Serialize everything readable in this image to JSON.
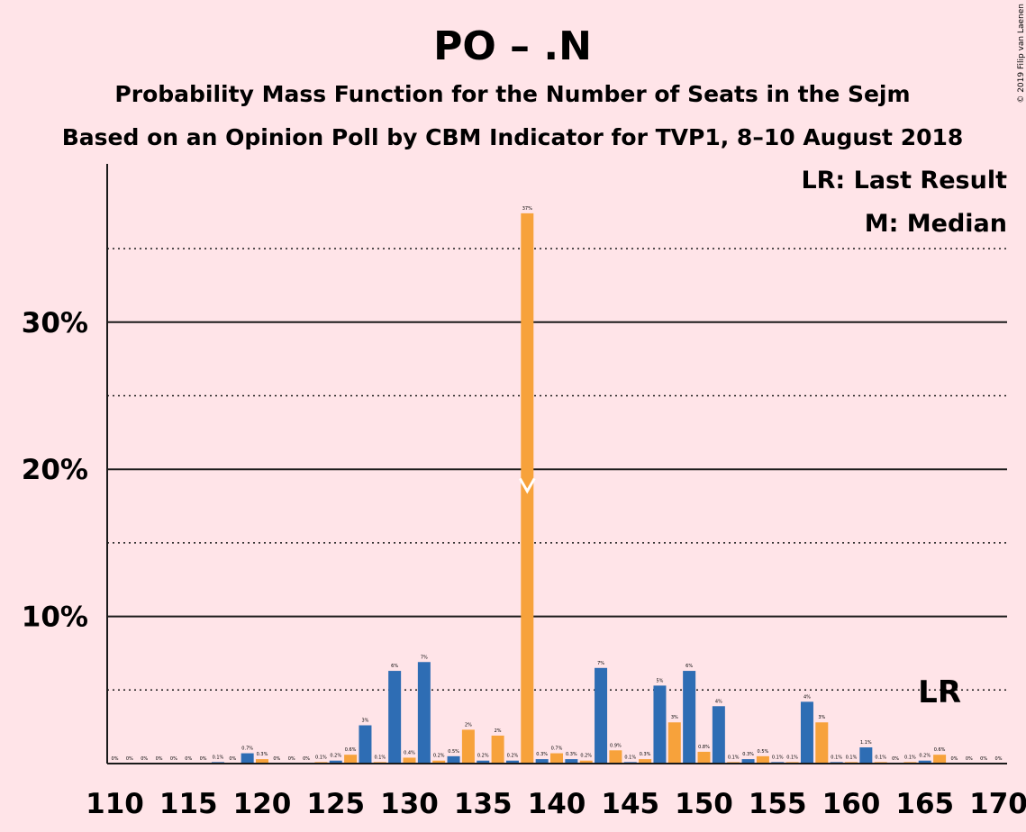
{
  "chart_data": {
    "type": "bar",
    "title": "PO – .N",
    "subtitle": "Probability Mass Function for the Number of Seats in the Sejm",
    "subtitle2": "Based on an Opinion Poll by CBM Indicator for TVP1, 8–10 August 2018",
    "copyright": "© 2019 Filip van Laenen",
    "legend": {
      "lr": "LR: Last Result",
      "median": "M: Median",
      "placement": "top-right"
    },
    "lr_marker": {
      "label": "LR",
      "seat": 166
    },
    "median_seat": 138,
    "xlim": [
      110,
      170
    ],
    "ylim": [
      0,
      40
    ],
    "x_ticks": [
      110,
      115,
      120,
      125,
      130,
      135,
      140,
      145,
      150,
      155,
      160,
      165,
      170
    ],
    "y_ticks": [
      {
        "value": 10,
        "label": "10%"
      },
      {
        "value": 20,
        "label": "20%"
      },
      {
        "value": 30,
        "label": "30%"
      }
    ],
    "dotted_lines": [
      5,
      15,
      25,
      35
    ],
    "colors": {
      "even": "#F7A23B",
      "odd": "#2E6DB4",
      "background": "#FFE4E8",
      "median_mark": "#FFFFFF"
    },
    "bars": [
      {
        "seat": 110,
        "value": 0,
        "label": "0%"
      },
      {
        "seat": 111,
        "value": 0,
        "label": "0%"
      },
      {
        "seat": 112,
        "value": 0,
        "label": "0%"
      },
      {
        "seat": 113,
        "value": 0,
        "label": "0%"
      },
      {
        "seat": 114,
        "value": 0,
        "label": "0%"
      },
      {
        "seat": 115,
        "value": 0,
        "label": "0%"
      },
      {
        "seat": 116,
        "value": 0,
        "label": "0%"
      },
      {
        "seat": 117,
        "value": 0.1,
        "label": "0.1%"
      },
      {
        "seat": 118,
        "value": 0,
        "label": "0%"
      },
      {
        "seat": 119,
        "value": 0.7,
        "label": "0.7%"
      },
      {
        "seat": 120,
        "value": 0.3,
        "label": "0.3%"
      },
      {
        "seat": 121,
        "value": 0,
        "label": "0%"
      },
      {
        "seat": 122,
        "value": 0,
        "label": "0%"
      },
      {
        "seat": 123,
        "value": 0,
        "label": "0%"
      },
      {
        "seat": 124,
        "value": 0.1,
        "label": "0.1%"
      },
      {
        "seat": 125,
        "value": 0.2,
        "label": "0.2%"
      },
      {
        "seat": 126,
        "value": 0.6,
        "label": "0.6%"
      },
      {
        "seat": 127,
        "value": 2.6,
        "label": "3%"
      },
      {
        "seat": 128,
        "value": 0.1,
        "label": "0.1%"
      },
      {
        "seat": 129,
        "value": 6.3,
        "label": "6%"
      },
      {
        "seat": 130,
        "value": 0.4,
        "label": "0.4%"
      },
      {
        "seat": 131,
        "value": 6.9,
        "label": "7%"
      },
      {
        "seat": 132,
        "value": 0.2,
        "label": "0.2%"
      },
      {
        "seat": 133,
        "value": 0.5,
        "label": "0.5%"
      },
      {
        "seat": 134,
        "value": 2.3,
        "label": "2%"
      },
      {
        "seat": 135,
        "value": 0.2,
        "label": "0.2%"
      },
      {
        "seat": 136,
        "value": 1.9,
        "label": "2%"
      },
      {
        "seat": 137,
        "value": 0.2,
        "label": "0.2%"
      },
      {
        "seat": 138,
        "value": 37.4,
        "label": "37%"
      },
      {
        "seat": 139,
        "value": 0.3,
        "label": "0.3%"
      },
      {
        "seat": 140,
        "value": 0.7,
        "label": "0.7%"
      },
      {
        "seat": 141,
        "value": 0.3,
        "label": "0.3%"
      },
      {
        "seat": 142,
        "value": 0.2,
        "label": "0.2%"
      },
      {
        "seat": 143,
        "value": 6.5,
        "label": "7%"
      },
      {
        "seat": 144,
        "value": 0.9,
        "label": "0.9%"
      },
      {
        "seat": 145,
        "value": 0.1,
        "label": "0.1%"
      },
      {
        "seat": 146,
        "value": 0.3,
        "label": "0.3%"
      },
      {
        "seat": 147,
        "value": 5.3,
        "label": "5%"
      },
      {
        "seat": 148,
        "value": 2.8,
        "label": "3%"
      },
      {
        "seat": 149,
        "value": 6.3,
        "label": "6%"
      },
      {
        "seat": 150,
        "value": 0.8,
        "label": "0.8%"
      },
      {
        "seat": 151,
        "value": 3.9,
        "label": "4%"
      },
      {
        "seat": 152,
        "value": 0.1,
        "label": "0.1%"
      },
      {
        "seat": 153,
        "value": 0.3,
        "label": "0.3%"
      },
      {
        "seat": 154,
        "value": 0.5,
        "label": "0.5%"
      },
      {
        "seat": 155,
        "value": 0.1,
        "label": "0.1%"
      },
      {
        "seat": 156,
        "value": 0.1,
        "label": "0.1%"
      },
      {
        "seat": 157,
        "value": 4.2,
        "label": "4%"
      },
      {
        "seat": 158,
        "value": 2.8,
        "label": "3%"
      },
      {
        "seat": 159,
        "value": 0.1,
        "label": "0.1%"
      },
      {
        "seat": 160,
        "value": 0.1,
        "label": "0.1%"
      },
      {
        "seat": 161,
        "value": 1.1,
        "label": "1.1%"
      },
      {
        "seat": 162,
        "value": 0.1,
        "label": "0.1%"
      },
      {
        "seat": 163,
        "value": 0,
        "label": "0%"
      },
      {
        "seat": 164,
        "value": 0.1,
        "label": "0.1%"
      },
      {
        "seat": 165,
        "value": 0.2,
        "label": "0.2%"
      },
      {
        "seat": 166,
        "value": 0.6,
        "label": "0.6%"
      },
      {
        "seat": 167,
        "value": 0,
        "label": "0%"
      },
      {
        "seat": 168,
        "value": 0,
        "label": "0%"
      },
      {
        "seat": 169,
        "value": 0,
        "label": "0%"
      },
      {
        "seat": 170,
        "value": 0,
        "label": "0%"
      }
    ]
  }
}
